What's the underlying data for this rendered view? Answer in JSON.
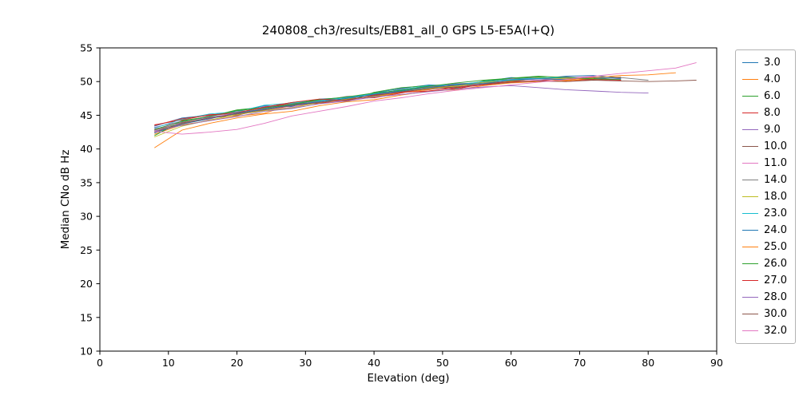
{
  "chart_data": {
    "type": "line",
    "title": "240808_ch3/results/EB81_all_0 GPS L5-E5A(I+Q)",
    "xlabel": "Elevation (deg)",
    "ylabel": "Median CNo dB Hz",
    "xlim": [
      0,
      90
    ],
    "ylim": [
      10,
      55
    ],
    "xticks": [
      0,
      10,
      20,
      30,
      40,
      50,
      60,
      70,
      80,
      90
    ],
    "yticks": [
      10,
      15,
      20,
      25,
      30,
      35,
      40,
      45,
      50,
      55
    ],
    "grid": false,
    "legend_position": "right-outside",
    "series": [
      {
        "name": "3.0",
        "color": "#1f77b4",
        "x": [
          8,
          12,
          16,
          20,
          24,
          28,
          32,
          36,
          40,
          44,
          48,
          52,
          56,
          60,
          64,
          68,
          72,
          76
        ],
        "y": [
          43.4,
          44.6,
          45.0,
          45.6,
          46.4,
          46.3,
          47.4,
          47.6,
          48.3,
          49.0,
          49.5,
          49.4,
          50.0,
          50.6,
          50.4,
          50.8,
          50.9,
          50.6
        ]
      },
      {
        "name": "4.0",
        "color": "#ff7f0e",
        "x": [
          8,
          12,
          16,
          20,
          24,
          28,
          32,
          36,
          40,
          44,
          48,
          52,
          56,
          60,
          64,
          68,
          72,
          76
        ],
        "y": [
          42.2,
          43.6,
          44.2,
          44.9,
          45.3,
          46.6,
          46.8,
          47.2,
          47.7,
          48.4,
          48.8,
          49.5,
          49.6,
          50.0,
          50.5,
          50.1,
          50.4,
          50.7
        ]
      },
      {
        "name": "6.0",
        "color": "#2ca02c",
        "x": [
          8,
          12,
          16,
          20,
          24,
          28,
          32,
          36,
          40,
          44,
          48,
          52,
          56,
          60,
          64,
          68,
          72,
          76
        ],
        "y": [
          42.0,
          44.2,
          44.8,
          45.8,
          46.2,
          46.9,
          47.3,
          47.0,
          48.4,
          49.1,
          49.4,
          49.0,
          50.1,
          50.4,
          50.7,
          50.3,
          50.5,
          50.2
        ]
      },
      {
        "name": "8.0",
        "color": "#d62728",
        "x": [
          8,
          12,
          16,
          20,
          24,
          28,
          32,
          36,
          40,
          44,
          48,
          52,
          56,
          60,
          64,
          68,
          72
        ],
        "y": [
          43.6,
          44.3,
          45.1,
          45.2,
          46.1,
          46.8,
          46.7,
          47.5,
          47.6,
          48.3,
          49.2,
          48.9,
          49.7,
          50.0,
          50.1,
          50.5,
          50.3
        ]
      },
      {
        "name": "9.0",
        "color": "#9467bd",
        "x": [
          8,
          12,
          16,
          20,
          24,
          28,
          32,
          36,
          40,
          44,
          48,
          52,
          56,
          60,
          64,
          68,
          72,
          76
        ],
        "y": [
          43.2,
          44.1,
          44.7,
          45.3,
          46.3,
          46.4,
          47.1,
          47.7,
          48.1,
          48.5,
          49.3,
          49.6,
          49.9,
          50.3,
          50.6,
          50.2,
          50.7,
          50.4
        ]
      },
      {
        "name": "10.0",
        "color": "#8c564b",
        "x": [
          8,
          12,
          16,
          20,
          24,
          28,
          32,
          36,
          40,
          44,
          48,
          52,
          56,
          60,
          64,
          68,
          72
        ],
        "y": [
          42.8,
          43.9,
          44.6,
          45.0,
          45.9,
          46.6,
          47.2,
          47.4,
          48.2,
          48.6,
          49.1,
          49.4,
          50.0,
          50.1,
          50.4,
          50.6,
          50.3
        ]
      },
      {
        "name": "11.0",
        "color": "#e377c2",
        "x": [
          8,
          12,
          16,
          20,
          24,
          28,
          32,
          36,
          40,
          44,
          48,
          52,
          56,
          60,
          64,
          68,
          72
        ],
        "y": [
          43.0,
          43.8,
          44.4,
          45.6,
          45.8,
          46.2,
          47.0,
          47.1,
          47.9,
          48.8,
          48.9,
          49.2,
          49.7,
          50.4,
          50.2,
          50.5,
          50.8
        ]
      },
      {
        "name": "14.0",
        "color": "#7f7f7f",
        "x": [
          8,
          12,
          16,
          20,
          24,
          28,
          32,
          36,
          40,
          44,
          48,
          52,
          56,
          60,
          64,
          68,
          72,
          76,
          80
        ],
        "y": [
          42.6,
          44.0,
          44.9,
          45.4,
          46.0,
          46.7,
          47.1,
          47.8,
          48.0,
          48.9,
          49.2,
          49.7,
          49.8,
          50.2,
          50.5,
          50.7,
          50.4,
          50.6,
          50.2
        ]
      },
      {
        "name": "18.0",
        "color": "#bcbd22",
        "x": [
          8,
          12,
          16,
          20,
          24,
          28,
          32,
          36,
          40,
          44,
          48,
          52,
          56,
          60,
          64,
          68,
          72
        ],
        "y": [
          41.8,
          43.4,
          44.3,
          45.1,
          45.7,
          46.1,
          46.9,
          47.4,
          47.8,
          48.5,
          49.0,
          49.3,
          49.9,
          50.1,
          50.6,
          50.4,
          50.5
        ]
      },
      {
        "name": "23.0",
        "color": "#17becf",
        "x": [
          8,
          12,
          16,
          20,
          24,
          28,
          32,
          36,
          40,
          44,
          48,
          52,
          56,
          60,
          64,
          68
        ],
        "y": [
          43.1,
          44.4,
          45.2,
          45.5,
          46.5,
          46.8,
          47.2,
          47.6,
          48.2,
          48.8,
          49.4,
          49.5,
          50.0,
          50.3,
          50.5,
          50.6
        ]
      },
      {
        "name": "24.0",
        "color": "#1f77b4",
        "x": [
          8,
          12,
          16,
          20,
          24,
          28,
          32,
          36,
          40,
          44,
          48,
          52,
          56,
          60,
          64,
          68,
          72,
          76
        ],
        "y": [
          42.4,
          43.7,
          44.5,
          45.3,
          45.9,
          46.5,
          47.0,
          47.5,
          48.1,
          48.6,
          49.1,
          49.6,
          49.7,
          50.2,
          50.4,
          50.3,
          50.6,
          50.5
        ]
      },
      {
        "name": "25.0",
        "color": "#ff7f0e",
        "x": [
          8,
          12,
          16,
          20,
          24,
          28,
          32,
          36,
          40,
          44,
          48,
          52,
          56,
          60,
          64,
          68,
          72,
          76,
          80,
          84
        ],
        "y": [
          40.2,
          42.8,
          43.8,
          44.6,
          45.2,
          45.6,
          46.4,
          47.0,
          47.3,
          48.0,
          48.6,
          48.8,
          49.4,
          49.8,
          50.0,
          50.2,
          50.6,
          50.9,
          51.0,
          51.3
        ]
      },
      {
        "name": "26.0",
        "color": "#2ca02c",
        "x": [
          8,
          12,
          16,
          20,
          24,
          28,
          32,
          36,
          40,
          44,
          48,
          52,
          56,
          60,
          64,
          68,
          72,
          76
        ],
        "y": [
          42.9,
          44.1,
          44.8,
          45.7,
          46.1,
          46.6,
          47.3,
          47.7,
          48.3,
          48.7,
          49.3,
          49.8,
          50.2,
          50.5,
          50.8,
          50.6,
          50.4,
          50.3
        ]
      },
      {
        "name": "27.0",
        "color": "#d62728",
        "x": [
          8,
          12,
          16,
          20,
          24,
          28,
          32,
          36,
          40,
          44,
          48,
          52,
          56,
          60,
          64,
          68,
          72,
          76
        ],
        "y": [
          43.5,
          44.5,
          45.0,
          45.4,
          46.2,
          46.9,
          47.4,
          47.2,
          48.0,
          48.4,
          48.6,
          49.1,
          49.5,
          49.9,
          50.1,
          50.0,
          50.3,
          50.2
        ]
      },
      {
        "name": "28.0",
        "color": "#9467bd",
        "x": [
          8,
          12,
          16,
          20,
          24,
          28,
          32,
          36,
          40,
          44,
          48,
          52,
          56,
          60,
          64,
          68,
          72,
          76,
          80
        ],
        "y": [
          42.7,
          43.5,
          44.2,
          44.8,
          45.6,
          46.0,
          46.7,
          47.1,
          47.7,
          48.1,
          48.5,
          48.9,
          49.2,
          49.4,
          49.1,
          48.8,
          48.6,
          48.4,
          48.3
        ]
      },
      {
        "name": "30.0",
        "color": "#8c564b",
        "x": [
          8,
          12,
          16,
          20,
          24,
          28,
          32,
          36,
          40,
          44,
          48,
          52,
          56,
          60,
          64,
          68,
          72,
          76,
          80,
          84,
          87
        ],
        "y": [
          42.5,
          43.8,
          44.6,
          45.2,
          45.8,
          46.4,
          46.9,
          47.3,
          47.9,
          48.5,
          48.9,
          49.2,
          49.6,
          49.9,
          50.1,
          50.0,
          50.2,
          50.1,
          50.0,
          50.1,
          50.2
        ]
      },
      {
        "name": "32.0",
        "color": "#e377c2",
        "x": [
          8,
          12,
          16,
          20,
          24,
          28,
          32,
          36,
          40,
          44,
          48,
          52,
          56,
          60,
          64,
          68,
          72,
          76,
          80,
          84,
          87
        ],
        "y": [
          42.6,
          42.2,
          42.5,
          42.9,
          43.8,
          44.9,
          45.6,
          46.3,
          47.1,
          47.6,
          48.2,
          48.7,
          49.1,
          49.5,
          49.9,
          50.3,
          50.8,
          51.2,
          51.6,
          52.0,
          52.8
        ]
      }
    ]
  }
}
